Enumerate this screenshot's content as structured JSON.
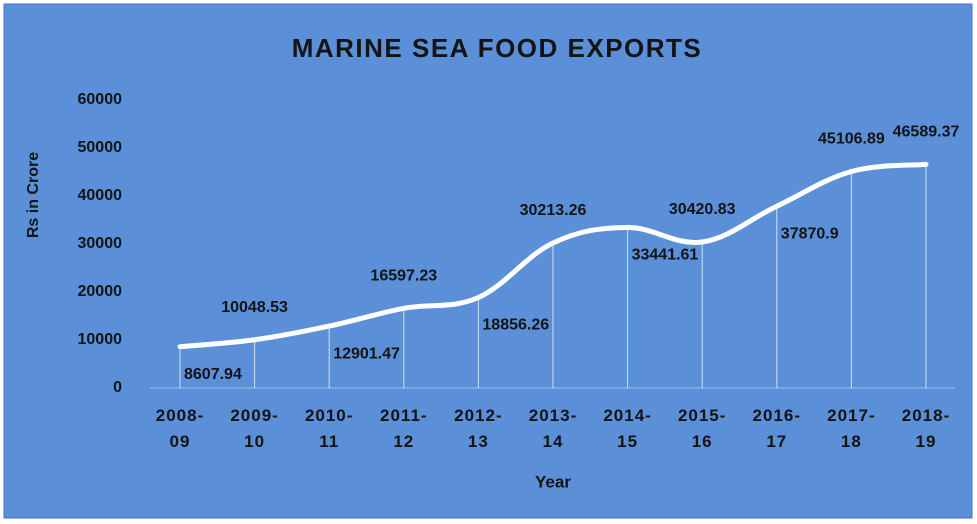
{
  "chart_data": {
    "type": "line",
    "title": "MARINE SEA FOOD EXPORTS",
    "x_label": "Year",
    "y_label": "Rs in Crore",
    "categories": [
      "2008-09",
      "2009-10",
      "2010-11",
      "2011-12",
      "2012-13",
      "2013-14",
      "2014-15",
      "2015-16",
      "2016-17",
      "2017-18",
      "2018-19"
    ],
    "series": [
      {
        "name": "Marine Sea Food Exports",
        "color": "#ffffff",
        "values": [
          8607.94,
          10048.53,
          12901.47,
          16597.23,
          18856.26,
          30213.26,
          33441.61,
          30420.83,
          37870.9,
          45106.89,
          46589.37
        ]
      }
    ],
    "ylim": [
      0,
      60000
    ],
    "yticks": [
      0,
      10000,
      20000,
      30000,
      40000,
      50000,
      60000
    ],
    "background": "#5b8fd8",
    "grid": false
  }
}
